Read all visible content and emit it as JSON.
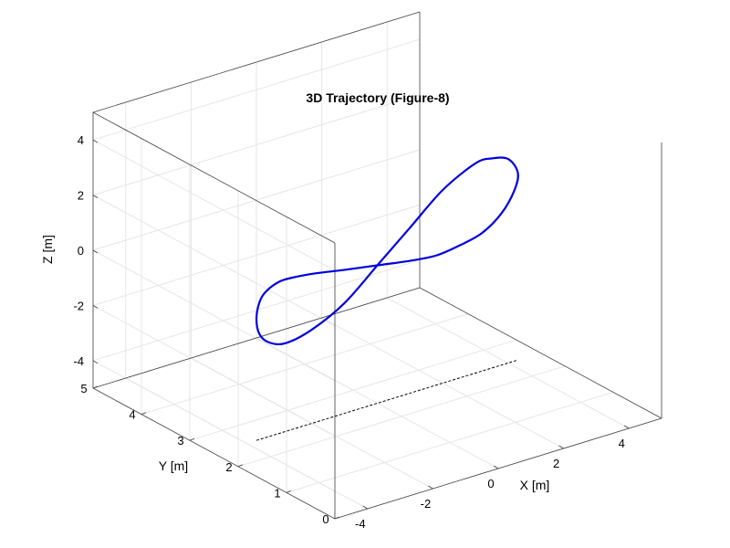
{
  "chart_data": {
    "type": "line",
    "title": "3D Trajectory (Figure-8)",
    "xlabel": "X [m]",
    "ylabel": "Y [m]",
    "zlabel": "Z [m]",
    "xlim": [
      -5,
      5
    ],
    "ylim": [
      0,
      5
    ],
    "zlim": [
      -5,
      5
    ],
    "grid": true,
    "x_ticks": [
      "-4",
      "-2",
      "0",
      "2",
      "4"
    ],
    "y_ticks": [
      "0",
      "1",
      "2",
      "3",
      "4",
      "5"
    ],
    "z_ticks": [
      "-4",
      "-2",
      "0",
      "2",
      "4"
    ],
    "series": [
      {
        "color": "#0000dd",
        "x": [
          0.0,
          1.0,
          2.0,
          3.0,
          3.5,
          4.0,
          4.3,
          4.2,
          3.8,
          3.2,
          2.5,
          1.8,
          1.0,
          0.0,
          -1.0,
          -1.9,
          -2.6,
          -3.0,
          -3.4,
          -3.6,
          -3.7,
          -3.6,
          -3.3,
          -2.8,
          -2.0,
          -1.0,
          0.0
        ],
        "y": [
          2.5,
          2.5,
          2.5,
          2.5,
          2.5,
          2.5,
          2.5,
          2.5,
          2.5,
          2.5,
          2.5,
          2.5,
          2.5,
          2.5,
          2.5,
          2.5,
          2.5,
          2.5,
          2.5,
          2.5,
          2.5,
          2.5,
          2.5,
          2.5,
          2.5,
          2.5,
          2.5
        ],
        "z": [
          0.0,
          1.0,
          2.0,
          2.6,
          2.6,
          2.4,
          1.8,
          1.2,
          0.5,
          0.0,
          -0.2,
          -0.3,
          -0.2,
          0.0,
          0.2,
          0.4,
          0.5,
          0.5,
          0.3,
          0.0,
          -0.6,
          -1.2,
          -1.6,
          -1.8,
          -1.6,
          -1.0,
          0.0
        ]
      }
    ],
    "projection": {
      "color": "#000000",
      "style": "dashed",
      "x": [
        -3.7,
        4.3
      ],
      "y": [
        2.5,
        2.5
      ],
      "z": [
        -5,
        -5
      ]
    }
  }
}
